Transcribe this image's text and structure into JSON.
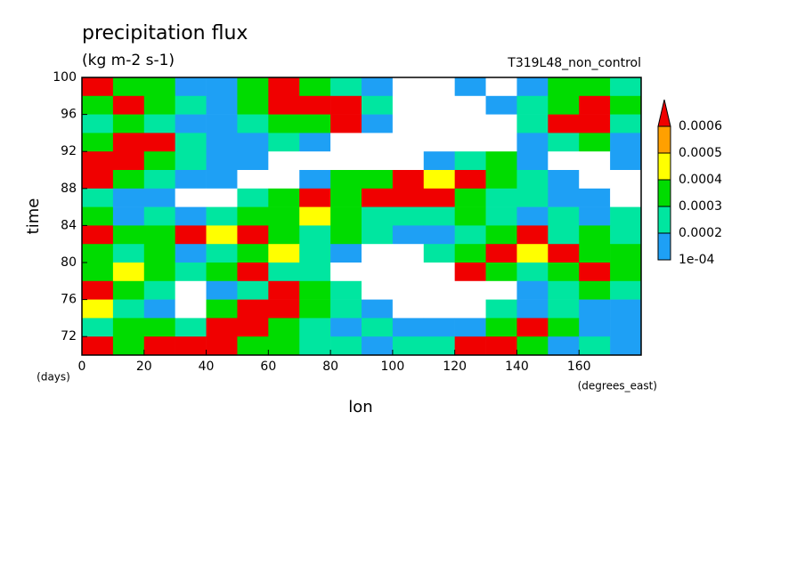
{
  "chart_data": {
    "type": "heatmap",
    "title": "precipitation flux",
    "subtitle": "(kg m-2 s-1)",
    "annotation": "T319L48_non_control",
    "x_label": "lon",
    "x_unit": "(degrees_east)",
    "y_label": "time",
    "y_unit": "(days)",
    "xlim": [
      0,
      180
    ],
    "xticks": [
      0,
      20,
      40,
      60,
      80,
      100,
      120,
      140,
      160
    ],
    "ylim": [
      70,
      100
    ],
    "yticks": [
      72,
      76,
      80,
      84,
      88,
      92,
      96,
      100
    ],
    "x": [
      5,
      15,
      25,
      35,
      45,
      55,
      65,
      75,
      85,
      95,
      105,
      115,
      125,
      135,
      145,
      155,
      165,
      175
    ],
    "y": [
      99,
      97,
      95,
      93,
      91,
      89,
      87,
      85,
      83,
      81,
      79,
      77,
      75,
      73,
      71
    ],
    "z": [
      [
        0.0007,
        0.00035,
        0.00035,
        0.00015,
        0.00015,
        0.00035,
        0.0007,
        0.00035,
        0.00025,
        0.00015,
        0,
        0,
        0.00015,
        0,
        0.00015,
        0.00035,
        0.00035,
        0.00025
      ],
      [
        0.00035,
        0.0007,
        0.00035,
        0.00025,
        0.00015,
        0.00035,
        0.0007,
        0.0007,
        0.0007,
        0.00025,
        0,
        0,
        0,
        0.00015,
        0.00025,
        0.00035,
        0.0007,
        0.00035
      ],
      [
        0.00025,
        0.00035,
        0.00025,
        0.00015,
        0.00015,
        0.00025,
        0.00035,
        0.00035,
        0.0007,
        0.00015,
        0,
        0,
        0,
        0,
        0.00025,
        0.0007,
        0.0007,
        0.00025
      ],
      [
        0.00035,
        0.0007,
        0.0007,
        0.00025,
        0.00015,
        0.00015,
        0.00025,
        0.00015,
        0,
        0,
        0,
        0,
        0,
        0,
        0.00015,
        0.00025,
        0.00035,
        0.00015
      ],
      [
        0.0007,
        0.0007,
        0.00035,
        0.00025,
        0.00015,
        0.00015,
        0,
        0,
        0,
        0,
        0,
        0.00015,
        0.00025,
        0.00035,
        0.00015,
        0,
        0,
        0.00015
      ],
      [
        0.0007,
        0.00035,
        0.00025,
        0.00015,
        0.00015,
        0,
        0,
        0.00015,
        0.00035,
        0.00035,
        0.0007,
        0.00045,
        0.0007,
        0.00035,
        0.00025,
        0.00015,
        0,
        0
      ],
      [
        0.00025,
        0.00015,
        0.00015,
        0,
        0,
        0.00025,
        0.00035,
        0.0007,
        0.00035,
        0.0007,
        0.0007,
        0.0007,
        0.00035,
        0.00025,
        0.00025,
        0.00015,
        0.00015,
        0
      ],
      [
        0.00035,
        0.00015,
        0.00025,
        0.00015,
        0.00025,
        0.00035,
        0.00035,
        0.00045,
        0.00035,
        0.00025,
        0.00025,
        0.00025,
        0.00035,
        0.00025,
        0.00015,
        0.00025,
        0.00015,
        0.00025
      ],
      [
        0.0007,
        0.00035,
        0.00035,
        0.0007,
        0.00045,
        0.0007,
        0.00035,
        0.00025,
        0.00035,
        0.00025,
        0.00015,
        0.00015,
        0.00025,
        0.00035,
        0.0007,
        0.00025,
        0.00035,
        0.00025
      ],
      [
        0.00035,
        0.00025,
        0.00035,
        0.00015,
        0.00025,
        0.00035,
        0.00045,
        0.00025,
        0.00015,
        0,
        0,
        0.00025,
        0.00035,
        0.0007,
        0.00045,
        0.0007,
        0.00035,
        0.00035
      ],
      [
        0.00035,
        0.00045,
        0.00035,
        0.00025,
        0.00035,
        0.0007,
        0.00025,
        0.00025,
        0,
        0,
        0,
        0,
        0.0007,
        0.00035,
        0.00025,
        0.00035,
        0.0007,
        0.00035
      ],
      [
        0.0007,
        0.00035,
        0.00025,
        0,
        0.00015,
        0.00025,
        0.0007,
        0.00035,
        0.00025,
        0,
        0,
        0,
        0,
        0,
        0.00015,
        0.00025,
        0.00035,
        0.00025
      ],
      [
        0.00045,
        0.00025,
        0.00015,
        0,
        0.00035,
        0.0007,
        0.0007,
        0.00035,
        0.00025,
        0.00015,
        0,
        0,
        0,
        0.00025,
        0.00015,
        0.00025,
        0.00015,
        0.00015
      ],
      [
        0.00025,
        0.00035,
        0.00035,
        0.00025,
        0.0007,
        0.0007,
        0.00035,
        0.00025,
        0.00015,
        0.00025,
        0.00015,
        0.00015,
        0.00015,
        0.00035,
        0.0007,
        0.00035,
        0.00015,
        0.00015
      ],
      [
        0.0007,
        0.00035,
        0.0007,
        0.0007,
        0.0007,
        0.00035,
        0.00035,
        0.00025,
        0.00025,
        0.00015,
        0.00025,
        0.00025,
        0.0007,
        0.0007,
        0.00035,
        0.00015,
        0.00025,
        0.00015
      ]
    ],
    "levels": [
      {
        "value": 0.0001,
        "label": "1e-04"
      },
      0.0002,
      0.0003,
      0.0004,
      0.0005,
      0.0006
    ],
    "colors": [
      "#1ea0f5",
      "#00e6a0",
      "#00dc00",
      "#ffff00",
      "#ffa000",
      "#f00000"
    ]
  }
}
